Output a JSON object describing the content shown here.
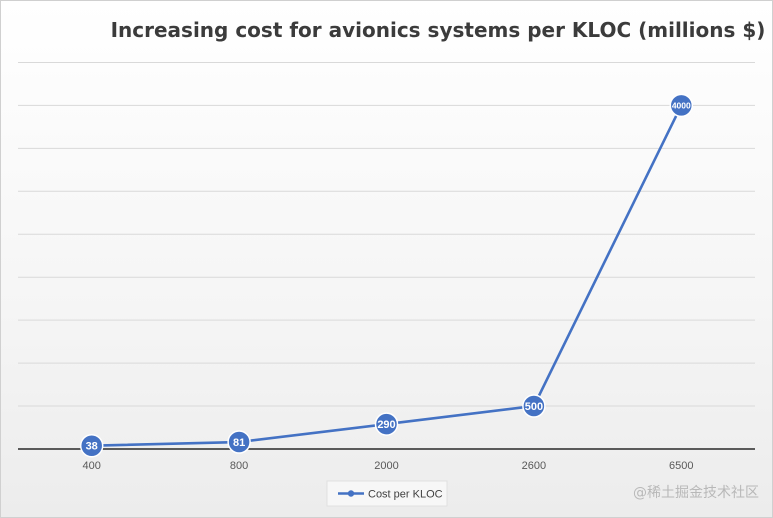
{
  "chart_data": {
    "type": "line",
    "title": "Increasing cost for avionics systems per KLOC (millions $)",
    "categories": [
      "400",
      "800",
      "2000",
      "2600",
      "6500"
    ],
    "series": [
      {
        "name": "Cost per KLOC",
        "values": [
          38,
          81,
          290,
          500,
          4000
        ]
      }
    ],
    "data_labels": [
      "38",
      "81",
      "290",
      "500",
      "4000"
    ],
    "xlabel": "",
    "ylabel": "",
    "ylim": [
      0,
      5000
    ],
    "ytick_step": 500,
    "y_tick_labels_shown": false,
    "grid": true,
    "legend": "bottom",
    "colors": {
      "series": "#4472c4",
      "grid": "#d9d9d9",
      "axis": "#000000",
      "marker_label": "#ffffff",
      "tick_label": "#595959"
    }
  },
  "watermark": "@稀土掘金技术社区"
}
